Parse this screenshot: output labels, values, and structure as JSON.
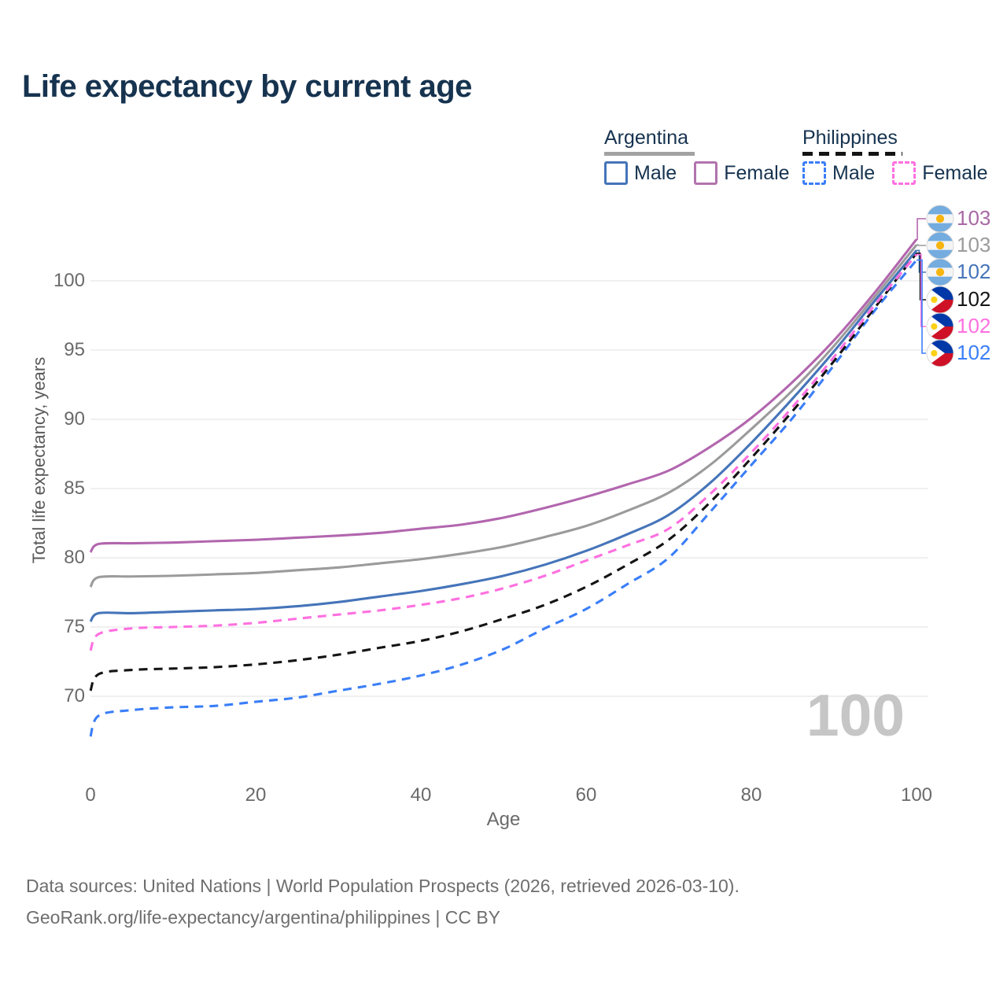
{
  "title": "Life expectancy by current age",
  "legend": {
    "argentina": {
      "country": "Argentina",
      "male_label": "Male",
      "female_label": "Female"
    },
    "philippines": {
      "country": "Philippines",
      "male_label": "Male",
      "female_label": "Female"
    }
  },
  "watermark": "100",
  "end_labels": [
    {
      "value": "103",
      "flag": "argentina",
      "series": "Argentina Female",
      "color": "#a869a5"
    },
    {
      "value": "103",
      "flag": "argentina",
      "series": "Argentina",
      "color": "#9b9b9b"
    },
    {
      "value": "102",
      "flag": "argentina",
      "series": "Argentina Male",
      "color": "#4574b9"
    },
    {
      "value": "102",
      "flag": "philippines",
      "series": "Philippines",
      "color": "#141414"
    },
    {
      "value": "102",
      "flag": "philippines",
      "series": "Philippines Female",
      "color": "#ff70e0"
    },
    {
      "value": "102",
      "flag": "philippines",
      "series": "Philippines Male",
      "color": "#3a7ef8"
    }
  ],
  "footer": {
    "line1": "Data sources: United Nations | World Population Prospects (2026, retrieved 2026-03-10).",
    "line2": "GeoRank.org/life-expectancy/argentina/philippines | CC BY"
  },
  "colors": {
    "argentina_female": "#b266ae",
    "argentina_total": "#9b9b9b",
    "argentina_male": "#4574b9",
    "philippines_female": "#ff70e0",
    "philippines_total": "#141414",
    "philippines_male": "#3a7ef8",
    "grid": "#ececec",
    "title_text": "#16334f",
    "axis_text": "#6a6a6a",
    "watermark": "#c6c6c6"
  },
  "chart_data": {
    "type": "line",
    "title": "Life expectancy by current age",
    "xlabel": "Age",
    "ylabel": "Total life expectancy, years",
    "x_ticks": [
      0,
      20,
      40,
      60,
      80,
      100
    ],
    "y_ticks": [
      70,
      75,
      80,
      85,
      90,
      95,
      100
    ],
    "xlim": [
      0,
      100
    ],
    "ylim": [
      66.5,
      103.8
    ],
    "grid": "horizontal",
    "legend_position": "top-right",
    "x": [
      0,
      1,
      5,
      10,
      15,
      20,
      25,
      30,
      35,
      40,
      45,
      50,
      55,
      60,
      65,
      70,
      75,
      80,
      85,
      90,
      95,
      100
    ],
    "series": [
      {
        "name": "Argentina Female",
        "country": "Argentina",
        "sex": "Female",
        "style": "solid",
        "color": "#b266ae",
        "end_label": "103",
        "values": [
          80.4,
          81.0,
          81.05,
          81.1,
          81.2,
          81.3,
          81.45,
          81.6,
          81.8,
          82.1,
          82.4,
          82.9,
          83.6,
          84.4,
          85.3,
          86.3,
          88.0,
          90.1,
          92.7,
          95.7,
          99.2,
          103.0
        ]
      },
      {
        "name": "Argentina",
        "country": "Argentina",
        "sex": "Both",
        "style": "solid",
        "color": "#9b9b9b",
        "end_label": "103",
        "values": [
          77.9,
          78.6,
          78.65,
          78.7,
          78.8,
          78.9,
          79.1,
          79.3,
          79.6,
          79.9,
          80.3,
          80.8,
          81.5,
          82.3,
          83.4,
          84.7,
          86.7,
          89.3,
          92.1,
          95.3,
          98.9,
          102.6
        ]
      },
      {
        "name": "Argentina Male",
        "country": "Argentina",
        "sex": "Male",
        "style": "solid",
        "color": "#4574b9",
        "end_label": "102",
        "values": [
          75.4,
          76.0,
          76.0,
          76.1,
          76.2,
          76.3,
          76.5,
          76.8,
          77.2,
          77.6,
          78.1,
          78.7,
          79.5,
          80.5,
          81.7,
          83.1,
          85.4,
          88.3,
          91.5,
          94.9,
          98.6,
          102.2
        ]
      },
      {
        "name": "Philippines",
        "country": "Philippines",
        "sex": "Both",
        "style": "dashed",
        "color": "#141414",
        "end_label": "102",
        "values": [
          70.4,
          71.6,
          71.9,
          72.0,
          72.1,
          72.3,
          72.6,
          73.0,
          73.5,
          74.0,
          74.7,
          75.6,
          76.6,
          77.9,
          79.5,
          81.3,
          84.0,
          87.2,
          90.6,
          94.2,
          98.1,
          102.0
        ]
      },
      {
        "name": "Philippines Female",
        "country": "Philippines",
        "sex": "Female",
        "style": "dashed",
        "color": "#ff70e0",
        "end_label": "102",
        "values": [
          73.3,
          74.5,
          74.9,
          75.0,
          75.1,
          75.3,
          75.6,
          75.9,
          76.2,
          76.6,
          77.1,
          77.8,
          78.7,
          79.8,
          80.9,
          82.1,
          84.6,
          87.6,
          90.9,
          94.5,
          98.3,
          101.9
        ]
      },
      {
        "name": "Philippines Male",
        "country": "Philippines",
        "sex": "Male",
        "style": "dashed",
        "color": "#3a7ef8",
        "end_label": "102",
        "values": [
          67.1,
          68.6,
          69.0,
          69.2,
          69.3,
          69.6,
          69.9,
          70.4,
          70.9,
          71.5,
          72.3,
          73.4,
          74.9,
          76.3,
          78.1,
          80.0,
          83.3,
          86.7,
          90.1,
          93.9,
          97.9,
          101.5
        ]
      }
    ]
  }
}
